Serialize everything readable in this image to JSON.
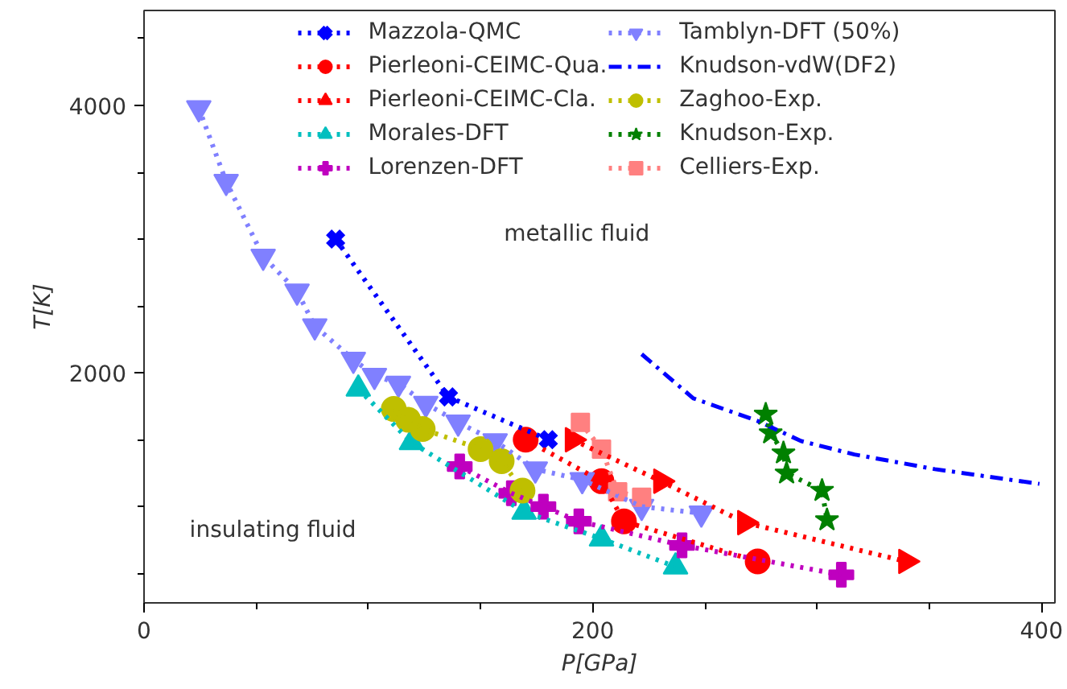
{
  "chart_data": {
    "type": "line",
    "xlabel": "P[GPa]",
    "ylabel": "T[K]",
    "xlim": [
      0,
      406
    ],
    "ylim": [
      280,
      4710
    ],
    "xticks": [
      0,
      {
        "value": 50,
        "label": null
      },
      {
        "value": 100,
        "label": null
      },
      {
        "value": 150,
        "label": null
      },
      200,
      {
        "value": 250,
        "label": null
      },
      {
        "value": 300,
        "label": null
      },
      {
        "value": 350,
        "label": null
      },
      400
    ],
    "yticks": [
      {
        "value": 500,
        "label": null
      },
      {
        "value": 1000,
        "label": null
      },
      {
        "value": 1500,
        "label": null
      },
      2000,
      {
        "value": 2500,
        "label": null
      },
      {
        "value": 3000,
        "label": null
      },
      {
        "value": 3500,
        "label": null
      },
      4000,
      {
        "value": 4500,
        "label": null
      }
    ],
    "grid": false,
    "legend": "top",
    "line_style": "dotted",
    "annotations": [
      "metallic fluid",
      "insulating fluid"
    ],
    "series": [
      {
        "name": "Mazzola-QMC",
        "color": "#0000ff",
        "marker": "x",
        "x": [
          85.4,
          135.7,
          180.2
        ],
        "values": [
          3000,
          1820,
          1500
        ]
      },
      {
        "name": "Pierleoni-CEIMC-Qua.",
        "color": "#ff0000",
        "marker": "circle",
        "x": [
          170.1,
          203.9,
          213.9,
          273.5
        ],
        "values": [
          1500,
          1190,
          890,
          590
        ]
      },
      {
        "name": "Pierleoni-CEIMC-Cla.",
        "color": "#ff0000",
        "marker": "triangle_right",
        "x": [
          191,
          230.4,
          267.8,
          339.6
        ],
        "values": [
          1500,
          1190,
          880,
          590
        ]
      },
      {
        "name": "Morales-DFT",
        "color": "#00bfbf",
        "marker": "triangle",
        "x": [
          95.5,
          119.2,
          169.4,
          203.9,
          236.9
        ],
        "values": [
          1880,
          1480,
          960,
          760,
          550
        ]
      },
      {
        "name": "Lorenzen-DFT",
        "color": "#bf00bf",
        "marker": "plus",
        "x": [
          140.7,
          163.7,
          178,
          193.8,
          239.8,
          310.8
        ],
        "values": [
          1300,
          1100,
          1000,
          890,
          710,
          490
        ]
      },
      {
        "name": "Tamblyn-DFT (50%)",
        "color": "#8080ff",
        "marker": "triangle_down",
        "x": [
          24.4,
          36.6,
          53.1,
          68.2,
          76.1,
          93.3,
          102.7,
          113.4,
          125.6,
          140,
          156.5,
          174.4,
          195.3,
          221.8,
          248.4
        ],
        "values": [
          3980,
          3430,
          2870,
          2610,
          2350,
          2100,
          1980,
          1920,
          1770,
          1630,
          1490,
          1280,
          1200,
          1000,
          950
        ]
      },
      {
        "name": "Knudson-vdW(DF2)",
        "color": "#0000ff",
        "marker": "none",
        "line_style": "dashdot",
        "x": [
          221.8,
          244.8,
          273.5,
          292.9,
          316.6,
          352.5,
          399.1
        ],
        "values": [
          2140,
          1810,
          1640,
          1490,
          1390,
          1280,
          1170
        ]
      },
      {
        "name": "Zaghoo-Exp.",
        "color": "#bfbf00",
        "marker": "circle",
        "x": [
          111.3,
          117.7,
          124.2,
          150,
          159.4,
          168.7
        ],
        "values": [
          1730,
          1650,
          1580,
          1430,
          1340,
          1120
        ]
      },
      {
        "name": "Knudson-Exp.",
        "color": "#008000",
        "marker": "star",
        "x": [
          277.1,
          279.3,
          285,
          286.4,
          302.2,
          304.4
        ],
        "values": [
          1690,
          1550,
          1400,
          1250,
          1120,
          900
        ]
      },
      {
        "name": "Celliers-Exp.",
        "color": "#ff8080",
        "marker": "square",
        "x": [
          194.5,
          203.9,
          211.1,
          221.8
        ],
        "values": [
          1630,
          1430,
          1110,
          1070
        ]
      }
    ]
  }
}
